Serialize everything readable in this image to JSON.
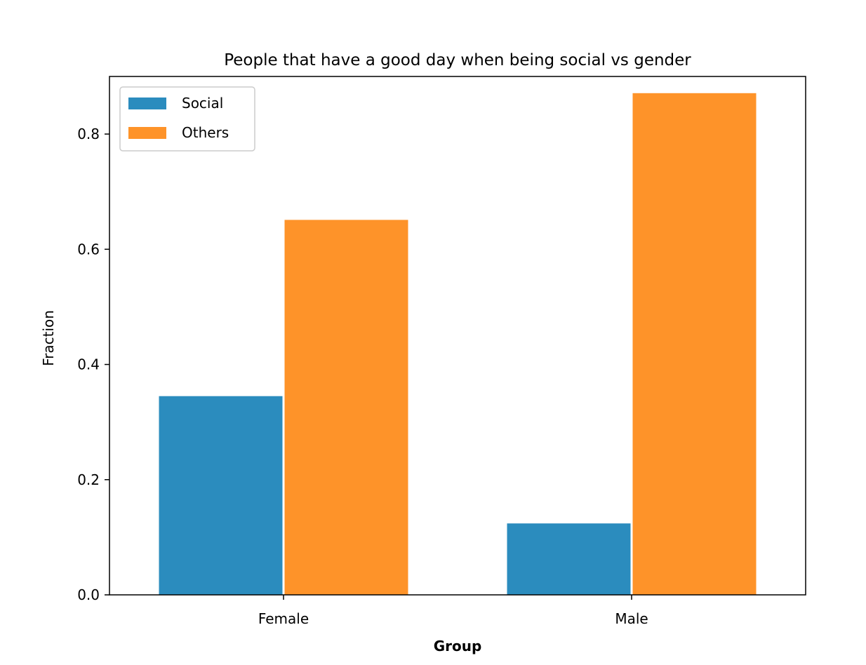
{
  "chart_data": {
    "type": "bar",
    "title": "People that have a good day when being social vs gender",
    "xlabel": "Group",
    "ylabel": "Fraction",
    "categories": [
      "Female",
      "Male"
    ],
    "series": [
      {
        "name": "Social",
        "values": [
          0.345,
          0.124
        ],
        "color": "#2b8cbe"
      },
      {
        "name": "Others",
        "values": [
          0.651,
          0.871
        ],
        "color": "#fe9329"
      }
    ],
    "ylim": [
      0,
      0.9
    ],
    "yticks": [
      0.0,
      0.2,
      0.4,
      0.6,
      0.8
    ],
    "ytick_labels": [
      "0.0",
      "0.2",
      "0.4",
      "0.6",
      "0.8"
    ],
    "grid": false,
    "legend_position": "top-left"
  }
}
